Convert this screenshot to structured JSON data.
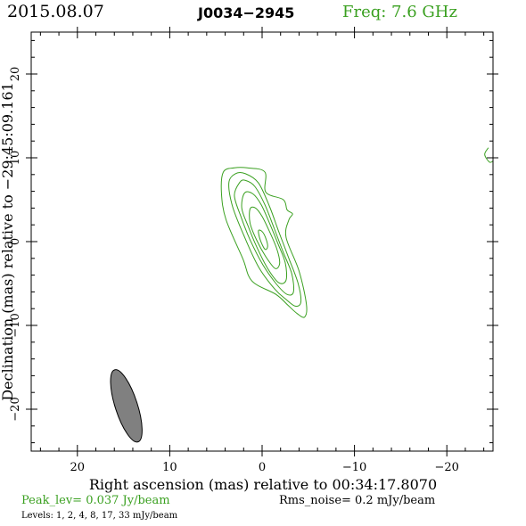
{
  "header": {
    "date": "2015.08.07",
    "source": "J0034−2945",
    "frequency": "Freq:  7.6  GHz"
  },
  "footer": {
    "peak": "Peak_lev=  0.037 Jy/beam",
    "rms": "Rms_noise=   0.2  mJy/beam",
    "levels": "Levels:    1,    2,    4,    8,   17,   33  mJy/beam"
  },
  "colors": {
    "contour": "#3aa020",
    "beam": "#808080",
    "frame": "#000000"
  },
  "chart_data": {
    "type": "contour",
    "xlabel": "Right ascension (mas) relative to 00:34:17.8070",
    "ylabel": "Declination (mas) relative to −29:45:09.161",
    "xlim": [
      25,
      -25
    ],
    "ylim": [
      -25,
      25
    ],
    "x_ticks": [
      20,
      10,
      0,
      -10,
      -20
    ],
    "x_tick_labels": [
      "20",
      "10",
      "0",
      "−10",
      "−20"
    ],
    "y_ticks": [
      20,
      10,
      0,
      -10,
      -20
    ],
    "y_tick_labels": [
      "20",
      "10",
      "0",
      "−10",
      "−20"
    ],
    "contour_levels_mJy": [
      1,
      2,
      4,
      8,
      17,
      33
    ],
    "peak_Jy_per_beam": 0.037,
    "rms_noise_mJy_per_beam": 0.2,
    "beam": {
      "x": 14.7,
      "y": -19.6,
      "major": 8.2,
      "minor": 2.4,
      "pa_deg": 18
    },
    "contours": [
      {
        "level": 1,
        "points": [
          [
            3,
            8.8
          ],
          [
            4.2,
            8.3
          ],
          [
            4.4,
            5.8
          ],
          [
            3.9,
            2.6
          ],
          [
            2.1,
            -2
          ],
          [
            1.1,
            -4.7
          ],
          [
            -1.5,
            -6.3
          ],
          [
            -2.8,
            -7.6
          ],
          [
            -3.8,
            -8.6
          ],
          [
            -4.6,
            -9
          ],
          [
            -4.8,
            -7.5
          ],
          [
            -4,
            -3.5
          ],
          [
            -2.6,
            0.5
          ],
          [
            -2.9,
            2.6
          ],
          [
            -3.3,
            3.3
          ],
          [
            -2.7,
            3.8
          ],
          [
            -2.3,
            5
          ],
          [
            -0.4,
            5.9
          ],
          [
            -0.3,
            8.3
          ],
          [
            1.6,
            8.8
          ],
          [
            3,
            8.8
          ]
        ]
      },
      {
        "level": 2,
        "points": [
          [
            2.9,
            8.1
          ],
          [
            3.6,
            7
          ],
          [
            3.2,
            4.2
          ],
          [
            2,
            0.8
          ],
          [
            0.4,
            -3
          ],
          [
            -1.4,
            -5.7
          ],
          [
            -2.6,
            -6.9
          ],
          [
            -3.6,
            -7.7
          ],
          [
            -4.2,
            -7.2
          ],
          [
            -3.9,
            -5
          ],
          [
            -2.9,
            -2
          ],
          [
            -1.8,
            1.2
          ],
          [
            -0.8,
            4.2
          ],
          [
            0.4,
            7
          ],
          [
            1.8,
            8.1
          ],
          [
            2.9,
            8.1
          ]
        ]
      },
      {
        "level": 4,
        "points": [
          [
            2.4,
            7.1
          ],
          [
            3,
            5.5
          ],
          [
            2.3,
            3
          ],
          [
            1.3,
            0.2
          ],
          [
            -0.1,
            -2.8
          ],
          [
            -1.5,
            -5
          ],
          [
            -2.7,
            -6.3
          ],
          [
            -3.4,
            -6
          ],
          [
            -3.2,
            -3.8
          ],
          [
            -2.3,
            -1.3
          ],
          [
            -1.3,
            1.6
          ],
          [
            -0.3,
            4.4
          ],
          [
            0.8,
            6.6
          ],
          [
            1.8,
            7.3
          ],
          [
            2.4,
            7.1
          ]
        ]
      },
      {
        "level": 8,
        "points": [
          [
            1.9,
            5.8
          ],
          [
            2.2,
            4
          ],
          [
            1.5,
            1.8
          ],
          [
            0.6,
            -0.6
          ],
          [
            -0.6,
            -3.2
          ],
          [
            -1.8,
            -4.9
          ],
          [
            -2.6,
            -4.6
          ],
          [
            -2.5,
            -2.5
          ],
          [
            -1.7,
            -0.2
          ],
          [
            -0.8,
            2.2
          ],
          [
            0.1,
            4.4
          ],
          [
            1,
            5.7
          ],
          [
            1.9,
            5.8
          ]
        ]
      },
      {
        "level": 17,
        "points": [
          [
            1.3,
            3.9
          ],
          [
            1.3,
            2.2
          ],
          [
            0.6,
            0.2
          ],
          [
            -0.4,
            -1.8
          ],
          [
            -1.4,
            -3.2
          ],
          [
            -1.9,
            -2.6
          ],
          [
            -1.6,
            -0.9
          ],
          [
            -0.8,
            1.2
          ],
          [
            0,
            3
          ],
          [
            0.7,
            4
          ],
          [
            1.3,
            3.9
          ]
        ]
      },
      {
        "level": 33,
        "points": [
          [
            0.4,
            1.3
          ],
          [
            0.2,
            0.2
          ],
          [
            -0.3,
            -0.9
          ],
          [
            -0.6,
            -0.6
          ],
          [
            -0.4,
            0.4
          ],
          [
            0,
            1.2
          ],
          [
            0.4,
            1.3
          ]
        ]
      },
      {
        "level": 1,
        "points": [
          [
            -24.5,
            11.2
          ],
          [
            -24.1,
            10.4
          ],
          [
            -24.6,
            9.5
          ],
          [
            -25,
            9.6
          ]
        ]
      }
    ]
  }
}
